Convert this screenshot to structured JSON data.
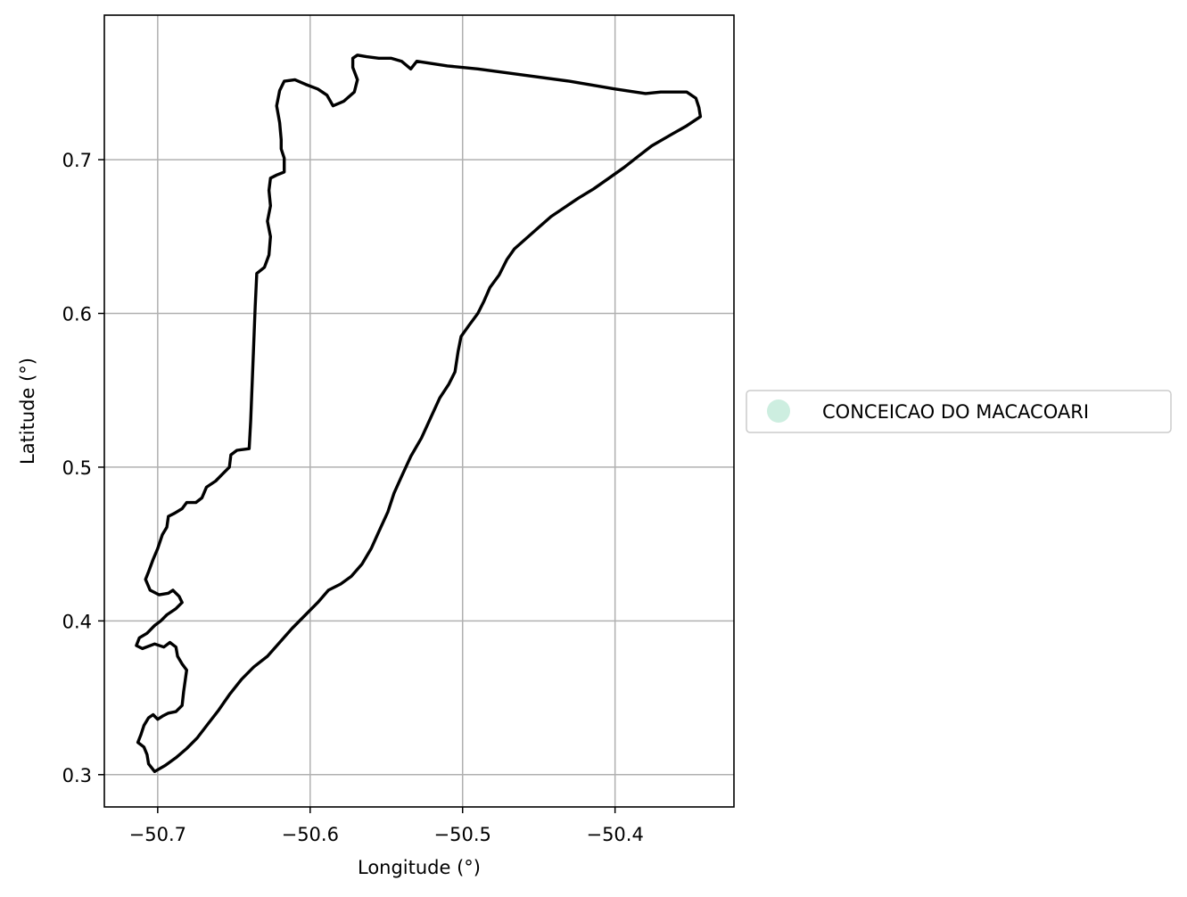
{
  "chart_data": {
    "type": "map",
    "xlabel": "Longitude (°)",
    "ylabel": "Latitude (°)",
    "xlim": [
      -50.735,
      -50.322
    ],
    "ylim": [
      0.279,
      0.794
    ],
    "xticks": [
      -50.7,
      -50.6,
      -50.5,
      -50.4
    ],
    "yticks": [
      0.3,
      0.4,
      0.5,
      0.6,
      0.7
    ],
    "xtick_labels": [
      "−50.7",
      "−50.6",
      "−50.5",
      "−50.4"
    ],
    "ytick_labels": [
      "0.3",
      "0.4",
      "0.5",
      "0.6",
      "0.7"
    ],
    "grid": true,
    "legend_placement": "center-right outside axes",
    "legend": [
      {
        "label": "CONCEICAO DO MACACOARI",
        "color": "#cdeee0"
      }
    ],
    "colors": {
      "boundary": "#000000",
      "grid": "#b0b0b0",
      "legend_marker": "#cdeee0"
    },
    "series": [
      {
        "name": "CONCEICAO DO MACACOARI",
        "boundary": [
          [
            -50.702,
            0.302
          ],
          [
            -50.695,
            0.306
          ],
          [
            -50.688,
            0.311
          ],
          [
            -50.681,
            0.317
          ],
          [
            -50.674,
            0.324
          ],
          [
            -50.667,
            0.333
          ],
          [
            -50.66,
            0.342
          ],
          [
            -50.653,
            0.352
          ],
          [
            -50.645,
            0.362
          ],
          [
            -50.637,
            0.37
          ],
          [
            -50.628,
            0.377
          ],
          [
            -50.62,
            0.386
          ],
          [
            -50.612,
            0.395
          ],
          [
            -50.603,
            0.404
          ],
          [
            -50.595,
            0.412
          ],
          [
            -50.588,
            0.42
          ],
          [
            -50.58,
            0.424
          ],
          [
            -50.573,
            0.429
          ],
          [
            -50.566,
            0.437
          ],
          [
            -50.56,
            0.447
          ],
          [
            -50.555,
            0.458
          ],
          [
            -50.549,
            0.471
          ],
          [
            -50.545,
            0.483
          ],
          [
            -50.54,
            0.494
          ],
          [
            -50.534,
            0.507
          ],
          [
            -50.527,
            0.519
          ],
          [
            -50.521,
            0.532
          ],
          [
            -50.515,
            0.545
          ],
          [
            -50.509,
            0.554
          ],
          [
            -50.505,
            0.562
          ],
          [
            -50.503,
            0.575
          ],
          [
            -50.501,
            0.585
          ],
          [
            -50.496,
            0.592
          ],
          [
            -50.49,
            0.6
          ],
          [
            -50.486,
            0.608
          ],
          [
            -50.482,
            0.617
          ],
          [
            -50.476,
            0.625
          ],
          [
            -50.471,
            0.635
          ],
          [
            -50.466,
            0.642
          ],
          [
            -50.458,
            0.649
          ],
          [
            -50.45,
            0.656
          ],
          [
            -50.442,
            0.663
          ],
          [
            -50.433,
            0.669
          ],
          [
            -50.424,
            0.675
          ],
          [
            -50.414,
            0.681
          ],
          [
            -50.404,
            0.688
          ],
          [
            -50.394,
            0.695
          ],
          [
            -50.385,
            0.702
          ],
          [
            -50.376,
            0.709
          ],
          [
            -50.369,
            0.713
          ],
          [
            -50.362,
            0.717
          ],
          [
            -50.353,
            0.722
          ],
          [
            -50.344,
            0.728
          ],
          [
            -50.345,
            0.734
          ],
          [
            -50.347,
            0.74
          ],
          [
            -50.353,
            0.744
          ],
          [
            -50.362,
            0.744
          ],
          [
            -50.37,
            0.744
          ],
          [
            -50.38,
            0.743
          ],
          [
            -50.4,
            0.746
          ],
          [
            -50.43,
            0.751
          ],
          [
            -50.46,
            0.755
          ],
          [
            -50.49,
            0.759
          ],
          [
            -50.51,
            0.761
          ],
          [
            -50.53,
            0.764
          ],
          [
            -50.534,
            0.759
          ],
          [
            -50.54,
            0.764
          ],
          [
            -50.547,
            0.766
          ],
          [
            -50.555,
            0.766
          ],
          [
            -50.563,
            0.767
          ],
          [
            -50.569,
            0.768
          ],
          [
            -50.572,
            0.766
          ],
          [
            -50.572,
            0.76
          ],
          [
            -50.569,
            0.752
          ],
          [
            -50.571,
            0.744
          ],
          [
            -50.578,
            0.738
          ],
          [
            -50.585,
            0.735
          ],
          [
            -50.589,
            0.742
          ],
          [
            -50.595,
            0.746
          ],
          [
            -50.603,
            0.749
          ],
          [
            -50.61,
            0.752
          ],
          [
            -50.617,
            0.751
          ],
          [
            -50.62,
            0.745
          ],
          [
            -50.622,
            0.735
          ],
          [
            -50.62,
            0.724
          ],
          [
            -50.619,
            0.713
          ],
          [
            -50.619,
            0.707
          ],
          [
            -50.617,
            0.701
          ],
          [
            -50.617,
            0.692
          ],
          [
            -50.622,
            0.69
          ],
          [
            -50.626,
            0.688
          ],
          [
            -50.627,
            0.68
          ],
          [
            -50.626,
            0.67
          ],
          [
            -50.628,
            0.66
          ],
          [
            -50.626,
            0.65
          ],
          [
            -50.627,
            0.638
          ],
          [
            -50.63,
            0.63
          ],
          [
            -50.635,
            0.626
          ],
          [
            -50.636,
            0.605
          ],
          [
            -50.637,
            0.58
          ],
          [
            -50.638,
            0.555
          ],
          [
            -50.639,
            0.53
          ],
          [
            -50.64,
            0.512
          ],
          [
            -50.648,
            0.511
          ],
          [
            -50.652,
            0.508
          ],
          [
            -50.653,
            0.5
          ],
          [
            -50.657,
            0.496
          ],
          [
            -50.662,
            0.491
          ],
          [
            -50.668,
            0.487
          ],
          [
            -50.671,
            0.48
          ],
          [
            -50.675,
            0.477
          ],
          [
            -50.681,
            0.477
          ],
          [
            -50.684,
            0.473
          ],
          [
            -50.689,
            0.47
          ],
          [
            -50.693,
            0.468
          ],
          [
            -50.694,
            0.461
          ],
          [
            -50.697,
            0.456
          ],
          [
            -50.7,
            0.447
          ],
          [
            -50.703,
            0.44
          ],
          [
            -50.706,
            0.432
          ],
          [
            -50.708,
            0.427
          ],
          [
            -50.705,
            0.42
          ],
          [
            -50.699,
            0.417
          ],
          [
            -50.693,
            0.418
          ],
          [
            -50.69,
            0.42
          ],
          [
            -50.686,
            0.416
          ],
          [
            -50.684,
            0.412
          ],
          [
            -50.688,
            0.408
          ],
          [
            -50.694,
            0.404
          ],
          [
            -50.698,
            0.4
          ],
          [
            -50.702,
            0.397
          ],
          [
            -50.707,
            0.392
          ],
          [
            -50.712,
            0.389
          ],
          [
            -50.714,
            0.384
          ],
          [
            -50.71,
            0.382
          ],
          [
            -50.702,
            0.385
          ],
          [
            -50.696,
            0.383
          ],
          [
            -50.692,
            0.386
          ],
          [
            -50.688,
            0.383
          ],
          [
            -50.687,
            0.377
          ],
          [
            -50.684,
            0.372
          ],
          [
            -50.681,
            0.368
          ],
          [
            -50.682,
            0.361
          ],
          [
            -50.683,
            0.354
          ],
          [
            -50.684,
            0.345
          ],
          [
            -50.688,
            0.341
          ],
          [
            -50.693,
            0.34
          ],
          [
            -50.697,
            0.338
          ],
          [
            -50.7,
            0.336
          ],
          [
            -50.703,
            0.339
          ],
          [
            -50.706,
            0.337
          ],
          [
            -50.709,
            0.332
          ],
          [
            -50.711,
            0.326
          ],
          [
            -50.713,
            0.321
          ],
          [
            -50.709,
            0.318
          ],
          [
            -50.707,
            0.313
          ],
          [
            -50.706,
            0.307
          ],
          [
            -50.702,
            0.302
          ]
        ]
      }
    ]
  }
}
